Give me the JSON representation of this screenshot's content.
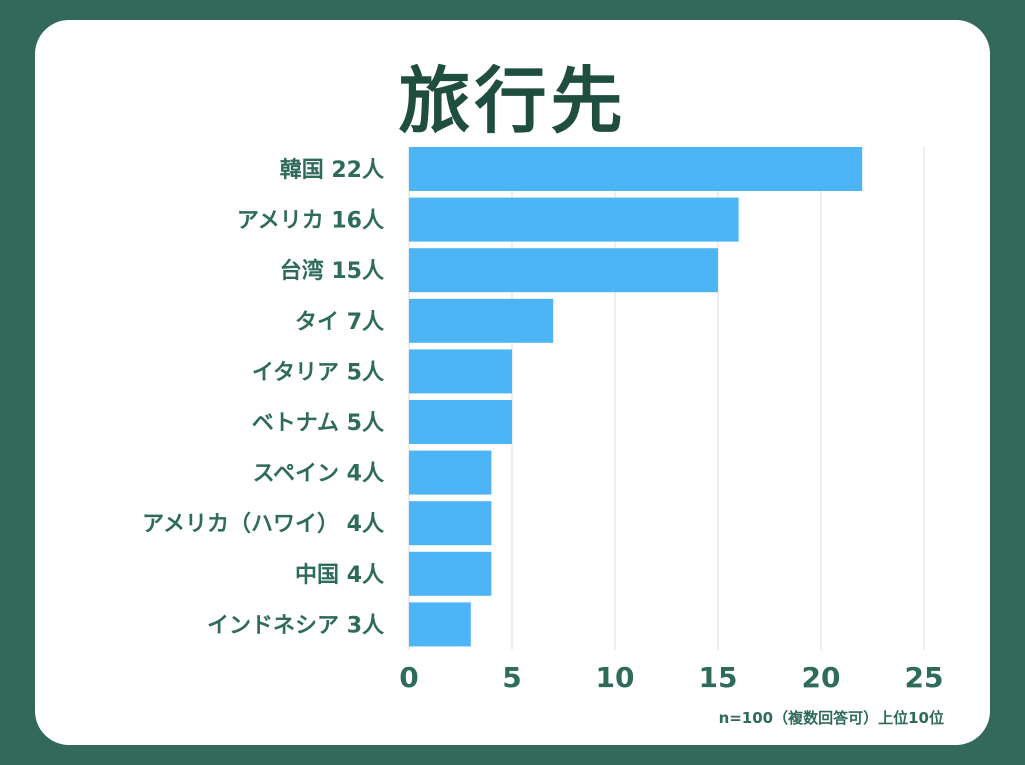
{
  "chart_data": {
    "type": "bar",
    "orientation": "horizontal",
    "title": "旅行先",
    "categories": [
      "韓国 22人",
      "アメリカ 16人",
      "台湾 15人",
      "タイ 7人",
      "イタリア 5人",
      "ベトナム 5人",
      "スペイン 4人",
      "アメリカ（ハワイ） 4人",
      "中国 4人",
      "インドネシア 3人"
    ],
    "values": [
      22,
      16,
      15,
      7,
      5,
      5,
      4,
      4,
      4,
      3
    ],
    "xlim": [
      0,
      25
    ],
    "xticks": [
      0,
      5,
      10,
      15,
      20,
      25
    ],
    "grid": true,
    "xlabel": "",
    "ylabel": "",
    "note": "n=100（複数回答可）上位10位"
  },
  "colors": {
    "background": "#33695a",
    "card": "#ffffff",
    "bar": "#4db4f5",
    "text": "#2f6b5a",
    "title": "#1f4d3f"
  }
}
